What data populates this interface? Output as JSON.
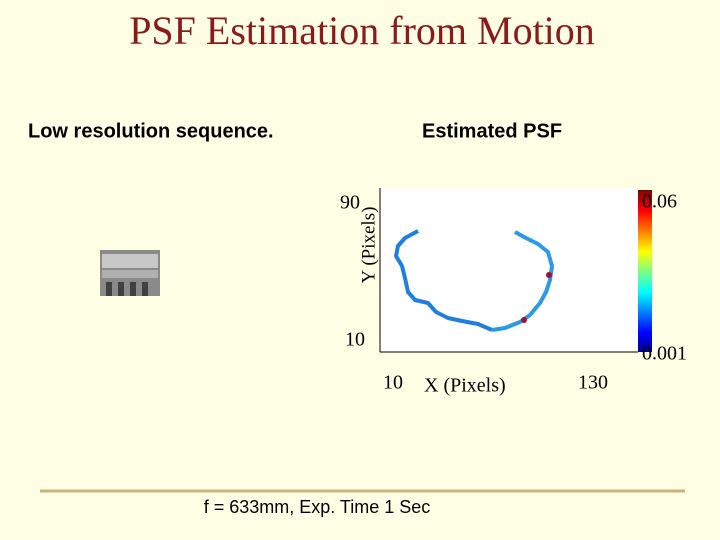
{
  "header": {
    "title": "PSF Estimation from Motion"
  },
  "panels": {
    "left_label": "Low resolution sequence.",
    "right_label": "Estimated PSF"
  },
  "plot": {
    "y_label": "Y (Pixels)",
    "y_ticks": [
      "90",
      "10"
    ],
    "x_label": "X (Pixels)",
    "x_ticks": [
      "10",
      "130"
    ],
    "colorbar_ticks": [
      "0.06",
      "0.001"
    ]
  },
  "footer": {
    "caption": "f = 633mm, Exp. Time 1 Sec"
  }
}
